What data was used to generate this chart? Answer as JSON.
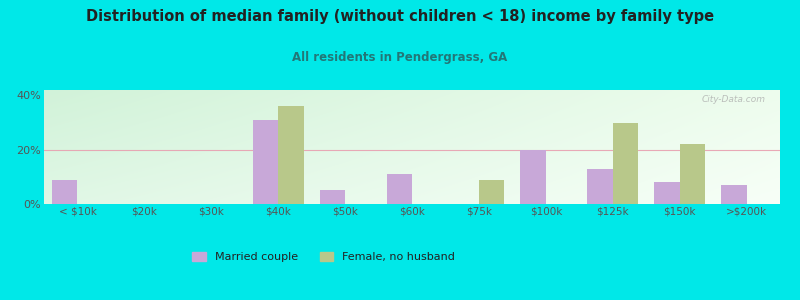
{
  "title": "Distribution of median family (without children < 18) income by family type",
  "subtitle": "All residents in Pendergrass, GA",
  "categories": [
    "< $10k",
    "$20k",
    "$30k",
    "$40k",
    "$50k",
    "$60k",
    "$75k",
    "$100k",
    "$125k",
    "$150k",
    ">$200k"
  ],
  "married_couple": [
    9,
    0,
    0,
    31,
    5,
    11,
    0,
    20,
    13,
    8,
    7
  ],
  "female_no_husband": [
    0,
    0,
    0,
    36,
    0,
    0,
    9,
    0,
    30,
    22,
    0
  ],
  "married_color": "#c8a8d8",
  "female_color": "#b8c88a",
  "background_color": "#00e8e8",
  "title_color": "#222222",
  "subtitle_color": "#227777",
  "axis_color": "#555555",
  "grid_color": "#e8a0b0",
  "ylim": [
    0,
    42
  ],
  "yticks": [
    0,
    20,
    40
  ],
  "ytick_labels": [
    "0%",
    "20%",
    "40%"
  ],
  "bar_width": 0.38,
  "watermark": "City-Data.com"
}
